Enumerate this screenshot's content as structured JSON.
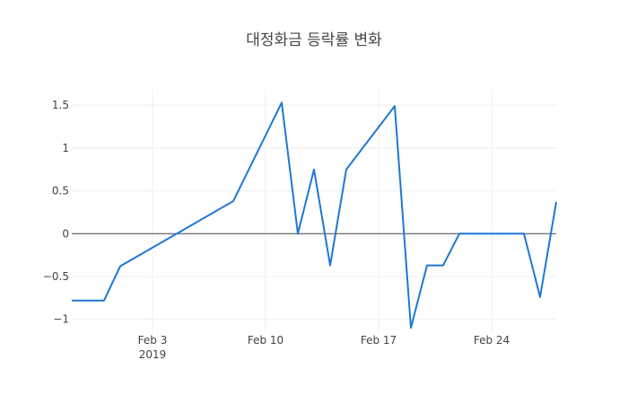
{
  "chart_data": {
    "type": "line",
    "title": "대정화금 등락률 변화",
    "xlabel": "",
    "ylabel": "",
    "x": [
      "2019-01-29",
      "2019-01-30",
      "2019-01-31",
      "2019-02-01",
      "2019-02-08",
      "2019-02-11",
      "2019-02-12",
      "2019-02-13",
      "2019-02-14",
      "2019-02-15",
      "2019-02-18",
      "2019-02-19",
      "2019-02-20",
      "2019-02-21",
      "2019-02-22",
      "2019-02-25",
      "2019-02-26",
      "2019-02-27",
      "2019-02-28"
    ],
    "series": [
      {
        "values": [
          -0.78,
          -0.78,
          -0.78,
          -0.38,
          0.38,
          1.53,
          0.0,
          0.75,
          -0.37,
          0.75,
          1.49,
          -1.1,
          -0.37,
          -0.37,
          0.0,
          0.0,
          0.0,
          -0.74,
          0.37
        ],
        "color": "#1f77d4"
      }
    ],
    "xlim": [
      "2019-01-29",
      "2019-02-28"
    ],
    "ylim": [
      -1.15,
      1.68
    ],
    "x_ticks": [
      {
        "date": "2019-02-03",
        "label": "Feb 3",
        "sublabel": "2019"
      },
      {
        "date": "2019-02-10",
        "label": "Feb 10",
        "sublabel": ""
      },
      {
        "date": "2019-02-17",
        "label": "Feb 17",
        "sublabel": ""
      },
      {
        "date": "2019-02-24",
        "label": "Feb 24",
        "sublabel": ""
      }
    ],
    "y_ticks": [
      {
        "value": 1.5,
        "label": "1.5"
      },
      {
        "value": 1,
        "label": "1"
      },
      {
        "value": 0.5,
        "label": "0.5"
      },
      {
        "value": 0,
        "label": "0"
      },
      {
        "value": -0.5,
        "label": "−0.5"
      },
      {
        "value": -1,
        "label": "−1"
      }
    ],
    "grid": true,
    "zero_line": true,
    "colors": {
      "line": "#1f77d4",
      "grid": "#eeeeee",
      "zero_line": "#444444",
      "text": "#444444"
    }
  }
}
